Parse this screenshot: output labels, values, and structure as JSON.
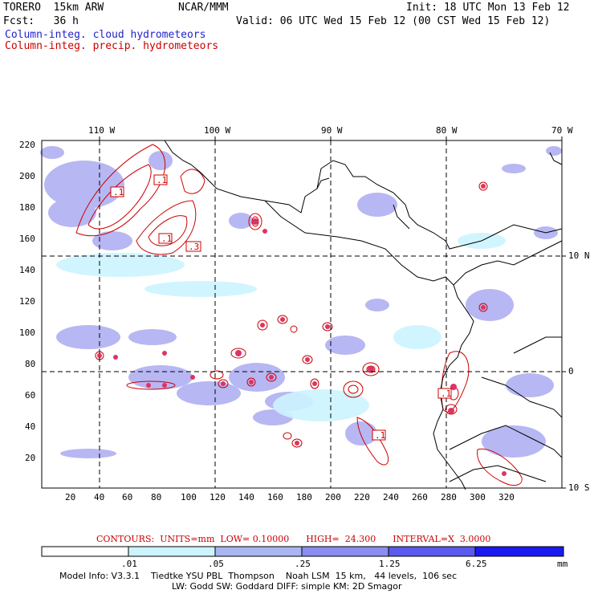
{
  "header": {
    "model": "TORERO  15km ARW",
    "org": "NCAR/MMM",
    "init": "Init: 18 UTC Mon 13 Feb 12",
    "fcst": "Fcst:   36 h",
    "valid": "Valid: 06 UTC Wed 15 Feb 12 (00 CST Wed 15 Feb 12)",
    "field_cloud": "Column-integ. cloud hydrometeors",
    "field_precip": "Column-integ. precip. hydrometeors"
  },
  "map": {
    "lon_labels": [
      "110 W",
      "100 W",
      "90 W",
      "80 W",
      "70 W"
    ],
    "lat_labels": [
      "10 N",
      "0",
      "10 S"
    ],
    "y_ticks": [
      "220",
      "200",
      "180",
      "160",
      "140",
      "120",
      "100",
      "80",
      "60",
      "40",
      "20"
    ],
    "x_ticks": [
      "20",
      "40",
      "60",
      "80",
      "100",
      "120",
      "140",
      "160",
      "180",
      "200",
      "220",
      "240",
      "260",
      "280",
      "300",
      "320"
    ],
    "contour_labels": [
      ".1",
      ".1",
      ".1",
      ".3",
      ".1",
      ".1"
    ],
    "colors": {
      "cloud_fill": "#9999ee",
      "cloud_light": "#ccf4ff",
      "precip_contour": "#cc0000",
      "coast": "#000000"
    }
  },
  "contour_info": {
    "text": "CONTOURS:  UNITS=mm  LOW= 0.10000      HIGH=  24.300      INTERVAL=X  3.0000"
  },
  "colorbar": {
    "labels": [
      ".01",
      ".05",
      ".25",
      "1.25",
      "6.25"
    ],
    "unit": "mm",
    "colors": [
      "#ffffff",
      "#ccf4ff",
      "#aab6f2",
      "#8a8ef0",
      "#6464ee",
      "#3a3aee",
      "#1a1af0"
    ]
  },
  "footer": {
    "line1": "Model Info: V3.3.1    Tiedtke YSU PBL  Thompson    Noah LSM  15 km,   44 levels,  106 sec",
    "line2": "LW: Godd SW: Goddard DIFF: simple KM: 2D Smagor"
  }
}
